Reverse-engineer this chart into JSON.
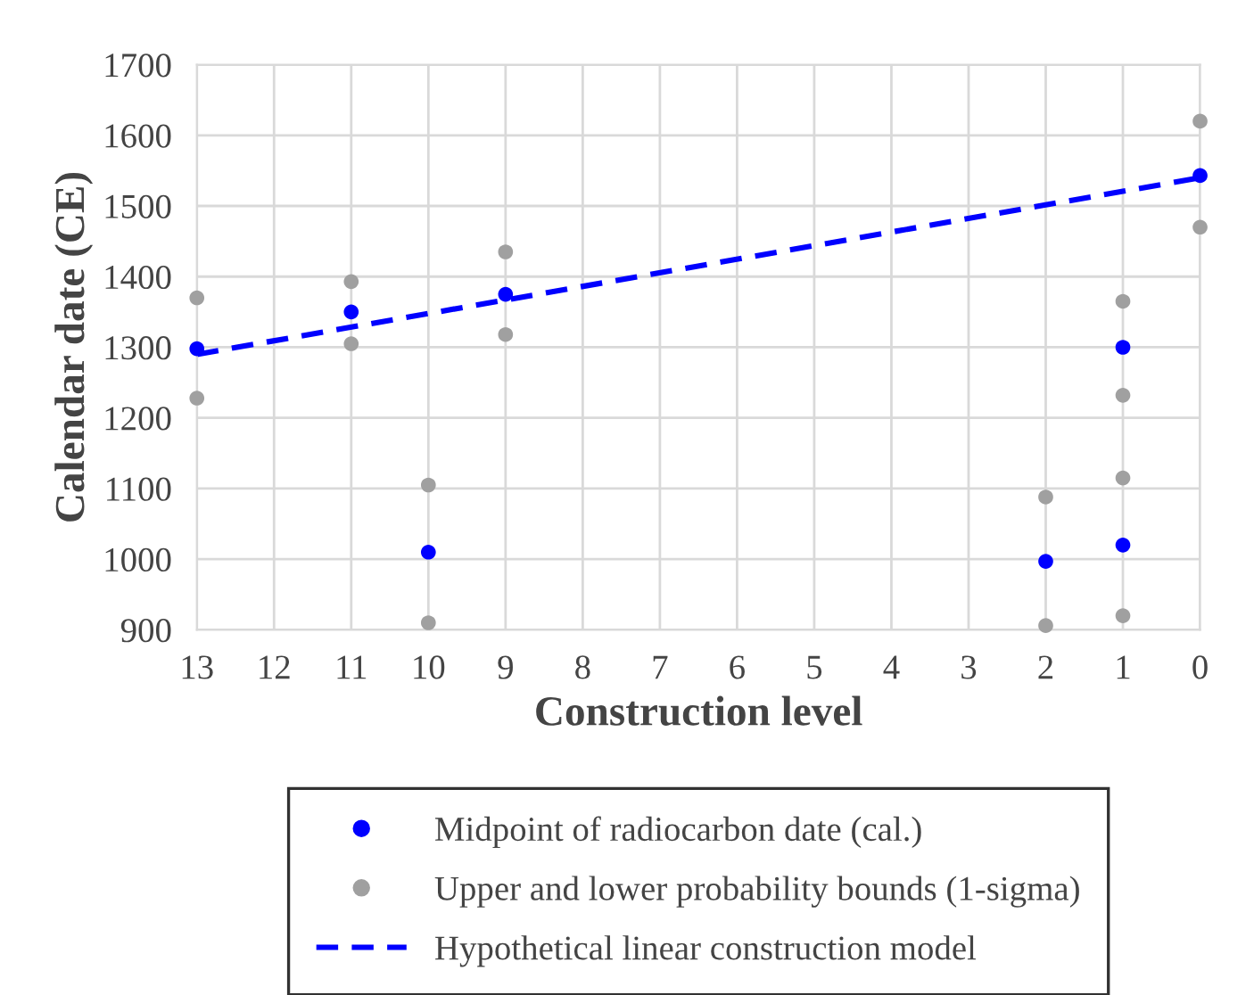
{
  "chart_data": {
    "type": "scatter",
    "xlabel": "Construction level",
    "ylabel": "Calendar date (CE)",
    "xlim": [
      13,
      0
    ],
    "xticks": [
      13,
      12,
      11,
      10,
      9,
      8,
      7,
      6,
      5,
      4,
      3,
      2,
      1,
      0
    ],
    "ylim": [
      900,
      1700
    ],
    "yticks": [
      900,
      1000,
      1100,
      1200,
      1300,
      1400,
      1500,
      1600,
      1700
    ],
    "grid": true,
    "legend": "bottom",
    "marker": "circle",
    "series": [
      {
        "name": "Midpoint of radiocarbon date (cal.)",
        "color": "#0000ff",
        "x": [
          13,
          11,
          10,
          9,
          2,
          1,
          1,
          0
        ],
        "values": [
          1298,
          1350,
          1010,
          1375,
          997,
          1300,
          1020,
          1543
        ]
      },
      {
        "name": "Upper and lower probability bounds (1-sigma)",
        "color": "#a0a0a0",
        "x": [
          13,
          13,
          11,
          11,
          10,
          10,
          9,
          9,
          2,
          2,
          1,
          1,
          1,
          1,
          0,
          0
        ],
        "values": [
          1370,
          1228,
          1393,
          1305,
          1105,
          910,
          1435,
          1318,
          1088,
          906,
          1365,
          1232,
          1115,
          920,
          1620,
          1470
        ]
      },
      {
        "name": "Hypothetical linear construction model",
        "type": "line",
        "color": "#0000ff",
        "line_style": "dashed",
        "marker": "none",
        "x": [
          13,
          0
        ],
        "values": [
          1290,
          1540
        ]
      }
    ]
  }
}
